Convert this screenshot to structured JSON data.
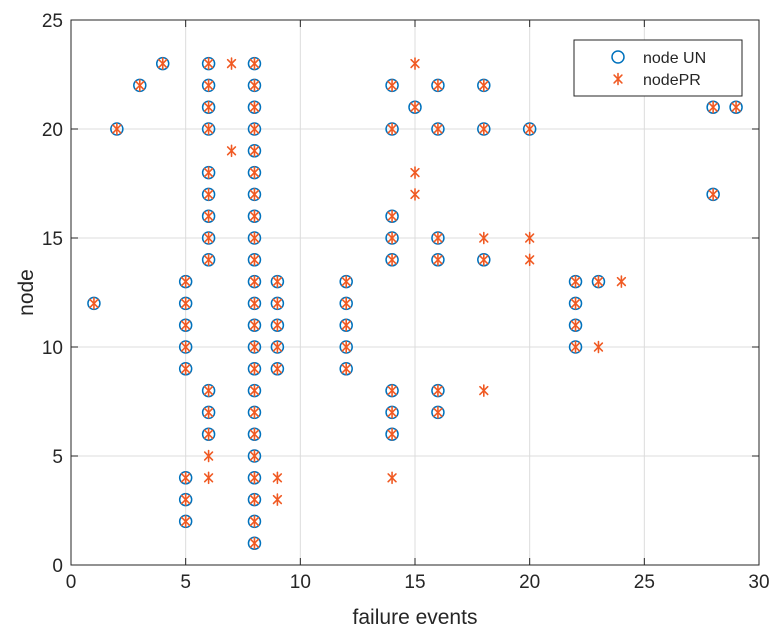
{
  "chart_data": {
    "type": "scatter",
    "xlabel": "failure events",
    "ylabel": "node",
    "xlim": [
      0,
      30
    ],
    "ylim": [
      0,
      25
    ],
    "xticks": [
      "0",
      "5",
      "10",
      "15",
      "20",
      "25",
      "30"
    ],
    "yticks": [
      "0",
      "5",
      "10",
      "15",
      "20",
      "25"
    ],
    "grid": true,
    "legend_position": "top-right",
    "series": [
      {
        "name": "node UN",
        "marker": "circle",
        "color": "#0072BD",
        "points": [
          [
            1,
            12
          ],
          [
            2,
            20
          ],
          [
            3,
            22
          ],
          [
            4,
            23
          ],
          [
            5,
            13
          ],
          [
            5,
            12
          ],
          [
            5,
            11
          ],
          [
            5,
            10
          ],
          [
            5,
            9
          ],
          [
            5,
            4
          ],
          [
            5,
            3
          ],
          [
            5,
            2
          ],
          [
            6,
            23
          ],
          [
            6,
            22
          ],
          [
            6,
            21
          ],
          [
            6,
            20
          ],
          [
            6,
            18
          ],
          [
            6,
            17
          ],
          [
            6,
            16
          ],
          [
            6,
            15
          ],
          [
            6,
            14
          ],
          [
            6,
            8
          ],
          [
            6,
            7
          ],
          [
            6,
            6
          ],
          [
            8,
            23
          ],
          [
            8,
            22
          ],
          [
            8,
            21
          ],
          [
            8,
            20
          ],
          [
            8,
            19
          ],
          [
            8,
            18
          ],
          [
            8,
            17
          ],
          [
            8,
            16
          ],
          [
            8,
            15
          ],
          [
            8,
            14
          ],
          [
            8,
            13
          ],
          [
            8,
            12
          ],
          [
            8,
            11
          ],
          [
            8,
            10
          ],
          [
            8,
            9
          ],
          [
            8,
            8
          ],
          [
            8,
            7
          ],
          [
            8,
            6
          ],
          [
            8,
            5
          ],
          [
            8,
            4
          ],
          [
            8,
            3
          ],
          [
            8,
            2
          ],
          [
            8,
            1
          ],
          [
            9,
            13
          ],
          [
            9,
            12
          ],
          [
            9,
            11
          ],
          [
            9,
            10
          ],
          [
            9,
            9
          ],
          [
            12,
            13
          ],
          [
            12,
            12
          ],
          [
            12,
            11
          ],
          [
            12,
            10
          ],
          [
            12,
            9
          ],
          [
            14,
            22
          ],
          [
            14,
            20
          ],
          [
            14,
            16
          ],
          [
            14,
            15
          ],
          [
            14,
            14
          ],
          [
            14,
            8
          ],
          [
            14,
            7
          ],
          [
            14,
            6
          ],
          [
            15,
            21
          ],
          [
            16,
            22
          ],
          [
            16,
            20
          ],
          [
            16,
            15
          ],
          [
            16,
            14
          ],
          [
            16,
            8
          ],
          [
            16,
            7
          ],
          [
            18,
            22
          ],
          [
            18,
            20
          ],
          [
            18,
            14
          ],
          [
            20,
            20
          ],
          [
            22,
            13
          ],
          [
            22,
            12
          ],
          [
            22,
            11
          ],
          [
            22,
            10
          ],
          [
            23,
            13
          ],
          [
            28,
            21
          ],
          [
            28,
            17
          ],
          [
            29,
            21
          ]
        ]
      },
      {
        "name": "nodePR",
        "marker": "asterisk",
        "color": "#F05A23",
        "points": [
          [
            1,
            12
          ],
          [
            2,
            20
          ],
          [
            3,
            22
          ],
          [
            4,
            23
          ],
          [
            5,
            13
          ],
          [
            5,
            12
          ],
          [
            5,
            11
          ],
          [
            5,
            10
          ],
          [
            5,
            9
          ],
          [
            5,
            4
          ],
          [
            5,
            3
          ],
          [
            5,
            2
          ],
          [
            6,
            23
          ],
          [
            6,
            22
          ],
          [
            6,
            21
          ],
          [
            6,
            20
          ],
          [
            6,
            18
          ],
          [
            6,
            17
          ],
          [
            6,
            16
          ],
          [
            6,
            15
          ],
          [
            6,
            14
          ],
          [
            6,
            8
          ],
          [
            6,
            7
          ],
          [
            6,
            6
          ],
          [
            6,
            5
          ],
          [
            6,
            4
          ],
          [
            7,
            23
          ],
          [
            7,
            19
          ],
          [
            8,
            23
          ],
          [
            8,
            22
          ],
          [
            8,
            21
          ],
          [
            8,
            20
          ],
          [
            8,
            19
          ],
          [
            8,
            18
          ],
          [
            8,
            17
          ],
          [
            8,
            16
          ],
          [
            8,
            15
          ],
          [
            8,
            14
          ],
          [
            8,
            13
          ],
          [
            8,
            12
          ],
          [
            8,
            11
          ],
          [
            8,
            10
          ],
          [
            8,
            9
          ],
          [
            8,
            8
          ],
          [
            8,
            7
          ],
          [
            8,
            6
          ],
          [
            8,
            5
          ],
          [
            8,
            4
          ],
          [
            8,
            3
          ],
          [
            8,
            2
          ],
          [
            8,
            1
          ],
          [
            9,
            13
          ],
          [
            9,
            12
          ],
          [
            9,
            11
          ],
          [
            9,
            10
          ],
          [
            9,
            9
          ],
          [
            9,
            4
          ],
          [
            9,
            3
          ],
          [
            12,
            13
          ],
          [
            12,
            12
          ],
          [
            12,
            11
          ],
          [
            12,
            10
          ],
          [
            12,
            9
          ],
          [
            14,
            22
          ],
          [
            14,
            20
          ],
          [
            14,
            16
          ],
          [
            14,
            15
          ],
          [
            14,
            14
          ],
          [
            14,
            8
          ],
          [
            14,
            7
          ],
          [
            14,
            6
          ],
          [
            14,
            4
          ],
          [
            15,
            23
          ],
          [
            15,
            21
          ],
          [
            15,
            18
          ],
          [
            15,
            17
          ],
          [
            16,
            22
          ],
          [
            16,
            20
          ],
          [
            16,
            15
          ],
          [
            16,
            14
          ],
          [
            16,
            8
          ],
          [
            16,
            7
          ],
          [
            18,
            22
          ],
          [
            18,
            20
          ],
          [
            18,
            15
          ],
          [
            18,
            14
          ],
          [
            18,
            8
          ],
          [
            20,
            20
          ],
          [
            20,
            15
          ],
          [
            20,
            14
          ],
          [
            22,
            13
          ],
          [
            22,
            12
          ],
          [
            22,
            11
          ],
          [
            22,
            10
          ],
          [
            23,
            13
          ],
          [
            23,
            10
          ],
          [
            24,
            13
          ],
          [
            28,
            21
          ],
          [
            28,
            17
          ],
          [
            29,
            23
          ],
          [
            29,
            21
          ]
        ]
      }
    ]
  }
}
